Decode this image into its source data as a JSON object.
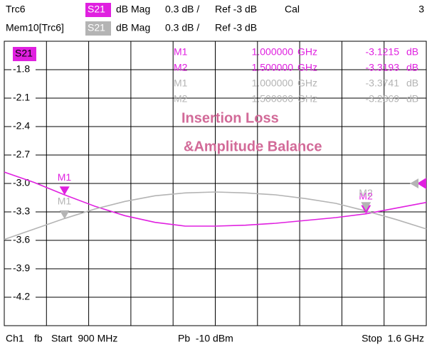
{
  "chart_data": {
    "type": "line",
    "header": [
      {
        "trace": "Trc6",
        "param": "S21",
        "format": "dB Mag",
        "scale": "0.3 dB /",
        "ref": "Ref -3 dB",
        "cal": "Cal",
        "channel": "3"
      },
      {
        "trace": "Mem10[Trc6]",
        "param": "S21",
        "format": "dB Mag",
        "scale": "0.3 dB /",
        "ref": "Ref -3 dB"
      }
    ],
    "trace_label": "S21",
    "annotations": [
      "Insertion Loss",
      "&Amplitude Balance"
    ],
    "footer": {
      "channel": "Ch1",
      "mode": "fb",
      "start": "Start  900 MHz",
      "power": "Pb  -10 dBm",
      "stop": "Stop  1.6 GHz"
    },
    "x": [
      0.9,
      0.95,
      1.0,
      1.05,
      1.1,
      1.15,
      1.2,
      1.25,
      1.3,
      1.35,
      1.4,
      1.45,
      1.5,
      1.55,
      1.6
    ],
    "xlim": [
      0.9,
      1.6
    ],
    "xticks": [
      0.9,
      0.97,
      1.04,
      1.11,
      1.18,
      1.25,
      1.32,
      1.39,
      1.46,
      1.53,
      1.6
    ],
    "ylim": [
      -4.5,
      -1.5
    ],
    "yticks": [
      -1.8,
      -2.1,
      -2.4,
      -2.7,
      {
        "value": -3,
        "label": "-3.0"
      },
      -3.3,
      -3.6,
      -3.9,
      -4.2
    ],
    "grid": true,
    "series": [
      {
        "color": "#e020e0",
        "values": [
          -2.88,
          -2.99,
          -3.12,
          -3.24,
          -3.34,
          -3.41,
          -3.45,
          -3.45,
          -3.44,
          -3.42,
          -3.39,
          -3.36,
          -3.32,
          -3.26,
          -3.2
        ],
        "markers": [
          {
            "name": "M1",
            "x": 1.0,
            "x_label": "1.000000",
            "x_unit": "GHz",
            "value": -3.1215,
            "unit": "dB"
          },
          {
            "name": "M2",
            "x": 1.5,
            "x_label": "1.500000",
            "x_unit": "GHz",
            "value": -3.3193,
            "unit": "dB"
          }
        ]
      },
      {
        "color": "#b4b4b4",
        "values": [
          -3.59,
          -3.48,
          -3.37,
          -3.27,
          -3.19,
          -3.13,
          -3.1,
          -3.09,
          -3.1,
          -3.12,
          -3.16,
          -3.21,
          -3.29,
          -3.38,
          -3.48
        ],
        "markers": [
          {
            "name": "M1",
            "x": 1.0,
            "x_label": "1.000000",
            "x_unit": "GHz",
            "value": -3.3741,
            "unit": "dB"
          },
          {
            "name": "M2",
            "x": 1.5,
            "x_label": "1.500000",
            "x_unit": "GHz",
            "value": -3.2869,
            "unit": "dB"
          }
        ]
      }
    ]
  }
}
